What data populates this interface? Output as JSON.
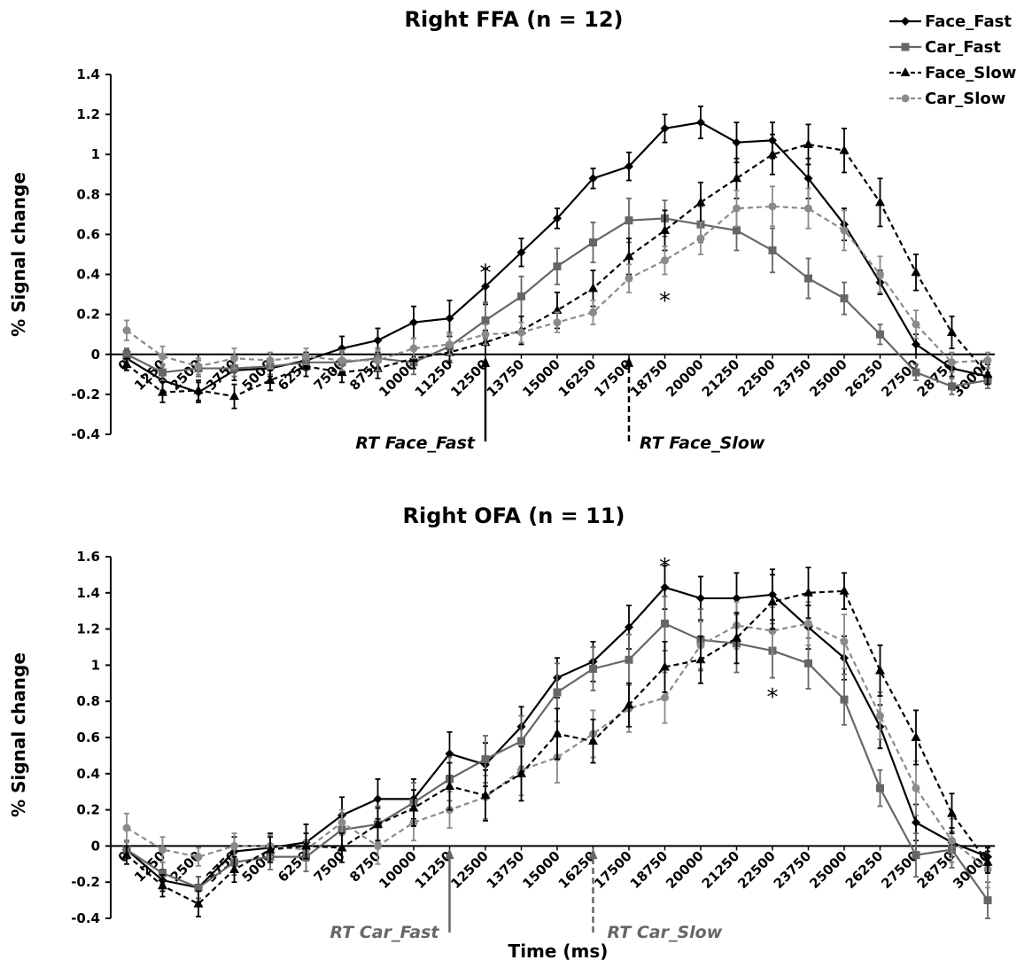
{
  "colors": {
    "Face_Fast": "#000000",
    "Car_Fast": "#666666",
    "Face_Slow": "#000000",
    "Car_Slow": "#8a8a8a"
  },
  "legend": [
    "Face_Fast",
    "Car_Fast",
    "Face_Slow",
    "Car_Slow"
  ],
  "chart_data": [
    {
      "type": "line",
      "title": "Right FFA (n = 12)",
      "ylabel": "% Signal change",
      "xlabel": "",
      "ylim": [
        -0.4,
        1.4
      ],
      "yticks": [
        "-0.4",
        "-0.2",
        "0",
        "0.2",
        "0.4",
        "0.6",
        "0.8",
        "1",
        "1.2",
        "1.4"
      ],
      "x": [
        "0",
        "1250",
        "2500",
        "3750",
        "5000",
        "6250",
        "7500",
        "8750",
        "10000",
        "11250",
        "12500",
        "13750",
        "15000",
        "16250",
        "17500",
        "18750",
        "20000",
        "21250",
        "22500",
        "23750",
        "25000",
        "26250",
        "27500",
        "28750",
        "30000"
      ],
      "series": [
        {
          "name": "Face_Fast",
          "values": [
            -0.02,
            -0.13,
            -0.19,
            -0.08,
            -0.07,
            -0.03,
            0.03,
            0.07,
            0.16,
            0.18,
            0.34,
            0.51,
            0.68,
            0.88,
            0.94,
            1.13,
            1.16,
            1.06,
            1.07,
            0.88,
            0.65,
            0.36,
            0.05,
            -0.07,
            -0.11
          ],
          "errors": [
            0.04,
            0.05,
            0.05,
            0.05,
            0.04,
            0.04,
            0.06,
            0.06,
            0.08,
            0.09,
            0.09,
            0.07,
            0.05,
            0.05,
            0.07,
            0.07,
            0.08,
            0.1,
            0.09,
            0.1,
            0.08,
            0.06,
            0.05,
            0.04,
            0.04
          ]
        },
        {
          "name": "Car_Fast",
          "values": [
            0.0,
            -0.09,
            -0.07,
            -0.07,
            -0.06,
            -0.04,
            -0.04,
            -0.02,
            -0.04,
            0.04,
            0.17,
            0.29,
            0.44,
            0.56,
            0.67,
            0.68,
            0.65,
            0.62,
            0.52,
            0.38,
            0.28,
            0.1,
            -0.09,
            -0.16,
            -0.13
          ],
          "errors": [
            0.03,
            0.04,
            0.04,
            0.04,
            0.04,
            0.04,
            0.05,
            0.05,
            0.06,
            0.07,
            0.09,
            0.1,
            0.09,
            0.1,
            0.11,
            0.09,
            0.09,
            0.1,
            0.11,
            0.1,
            0.08,
            0.05,
            0.04,
            0.04,
            0.04
          ]
        },
        {
          "name": "Face_Slow",
          "values": [
            -0.05,
            -0.19,
            -0.18,
            -0.21,
            -0.13,
            -0.06,
            -0.09,
            -0.07,
            -0.02,
            0.01,
            0.06,
            0.12,
            0.22,
            0.33,
            0.49,
            0.62,
            0.76,
            0.88,
            1.0,
            1.05,
            1.02,
            0.76,
            0.41,
            0.11,
            -0.1
          ],
          "errors": [
            0.03,
            0.05,
            0.05,
            0.06,
            0.05,
            0.05,
            0.05,
            0.05,
            0.05,
            0.05,
            0.06,
            0.07,
            0.09,
            0.09,
            0.09,
            0.1,
            0.1,
            0.1,
            0.1,
            0.1,
            0.11,
            0.12,
            0.09,
            0.08,
            0.05
          ]
        },
        {
          "name": "Car_Slow",
          "values": [
            0.12,
            -0.01,
            -0.06,
            -0.02,
            -0.03,
            -0.01,
            -0.03,
            -0.03,
            0.03,
            0.05,
            0.1,
            0.11,
            0.16,
            0.21,
            0.38,
            0.47,
            0.58,
            0.73,
            0.74,
            0.73,
            0.62,
            0.4,
            0.15,
            -0.04,
            -0.03
          ],
          "errors": [
            0.05,
            0.05,
            0.04,
            0.05,
            0.04,
            0.04,
            0.05,
            0.05,
            0.05,
            0.05,
            0.05,
            0.05,
            0.05,
            0.06,
            0.07,
            0.07,
            0.08,
            0.09,
            0.1,
            0.1,
            0.1,
            0.09,
            0.07,
            0.05,
            0.04
          ]
        }
      ],
      "annotations": [
        {
          "text": "RT Face_Fast",
          "x": "12500",
          "style": "solid",
          "color": "#000000"
        },
        {
          "text": "RT Face_Slow",
          "x": "17500",
          "style": "dashed",
          "color": "#000000"
        }
      ],
      "stars": [
        {
          "text": "*",
          "x": "12500",
          "y": 0.44
        },
        {
          "text": "*",
          "x": "18750",
          "y": 0.3
        }
      ]
    },
    {
      "type": "line",
      "title": "Right OFA (n = 11)",
      "ylabel": "% Signal change",
      "xlabel": "Time (ms)",
      "ylim": [
        -0.4,
        1.6
      ],
      "yticks": [
        "-0.4",
        "-0.2",
        "0",
        "0.2",
        "0.4",
        "0.6",
        "0.8",
        "1",
        "1.2",
        "1.4",
        "1.6"
      ],
      "x": [
        "0",
        "1250",
        "2500",
        "3750",
        "5000",
        "6250",
        "7500",
        "8750",
        "10000",
        "11250",
        "12500",
        "13750",
        "15000",
        "16250",
        "17500",
        "18750",
        "20000",
        "21250",
        "22500",
        "23750",
        "25000",
        "26250",
        "27500",
        "28750",
        "30000"
      ],
      "series": [
        {
          "name": "Face_Fast",
          "values": [
            -0.02,
            -0.19,
            -0.23,
            -0.03,
            -0.01,
            0.02,
            0.17,
            0.26,
            0.26,
            0.51,
            0.45,
            0.66,
            0.93,
            1.02,
            1.21,
            1.43,
            1.37,
            1.37,
            1.39,
            1.21,
            1.04,
            0.66,
            0.13,
            0.02,
            -0.06
          ],
          "errors": [
            0.05,
            0.06,
            0.06,
            0.08,
            0.08,
            0.1,
            0.1,
            0.11,
            0.11,
            0.12,
            0.12,
            0.11,
            0.11,
            0.11,
            0.12,
            0.12,
            0.12,
            0.14,
            0.14,
            0.12,
            0.12,
            0.12,
            0.1,
            0.08,
            0.05
          ]
        },
        {
          "name": "Car_Fast",
          "values": [
            -0.02,
            -0.15,
            -0.23,
            -0.09,
            -0.06,
            -0.06,
            0.09,
            0.12,
            0.24,
            0.37,
            0.48,
            0.58,
            0.85,
            0.98,
            1.03,
            1.23,
            1.14,
            1.12,
            1.08,
            1.01,
            0.81,
            0.32,
            -0.05,
            -0.02,
            -0.3
          ],
          "errors": [
            0.05,
            0.06,
            0.06,
            0.07,
            0.07,
            0.08,
            0.09,
            0.1,
            0.11,
            0.12,
            0.13,
            0.14,
            0.16,
            0.12,
            0.14,
            0.15,
            0.17,
            0.16,
            0.15,
            0.14,
            0.14,
            0.1,
            0.12,
            0.1,
            0.1
          ]
        },
        {
          "name": "Car_Slow",
          "values": [
            0.1,
            -0.02,
            -0.06,
            0.0,
            0.0,
            -0.02,
            0.13,
            0.0,
            0.13,
            0.2,
            0.27,
            0.42,
            0.49,
            0.62,
            0.76,
            0.82,
            1.11,
            1.22,
            1.19,
            1.23,
            1.13,
            0.72,
            0.32,
            0.03,
            -0.13
          ],
          "errors": [
            0.08,
            0.07,
            0.05,
            0.07,
            0.06,
            0.05,
            0.07,
            0.1,
            0.1,
            0.1,
            0.12,
            0.14,
            0.14,
            0.13,
            0.13,
            0.14,
            0.13,
            0.13,
            0.13,
            0.12,
            0.15,
            0.13,
            0.15,
            0.12,
            0.1
          ]
        },
        {
          "name": "Face_Slow",
          "values": [
            -0.05,
            -0.22,
            -0.32,
            -0.13,
            -0.02,
            0.0,
            -0.01,
            0.12,
            0.21,
            0.33,
            0.28,
            0.4,
            0.62,
            0.58,
            0.78,
            0.99,
            1.03,
            1.15,
            1.35,
            1.4,
            1.41,
            0.97,
            0.6,
            0.18,
            -0.09
          ],
          "errors": [
            0.05,
            0.06,
            0.07,
            0.07,
            0.07,
            0.07,
            0.08,
            0.09,
            0.1,
            0.13,
            0.14,
            0.15,
            0.14,
            0.12,
            0.12,
            0.14,
            0.13,
            0.14,
            0.15,
            0.14,
            0.1,
            0.14,
            0.15,
            0.11,
            0.06
          ]
        }
      ],
      "annotations": [
        {
          "text": "RT Car_Fast",
          "x": "11250",
          "style": "solid",
          "color": "#666666"
        },
        {
          "text": "RT Car_Slow",
          "x": "16250",
          "style": "dashed",
          "color": "#666666"
        }
      ],
      "stars": [
        {
          "text": "*",
          "x": "18750",
          "y": 1.58
        },
        {
          "text": "*",
          "x": "22500",
          "y": 0.86
        }
      ]
    }
  ]
}
